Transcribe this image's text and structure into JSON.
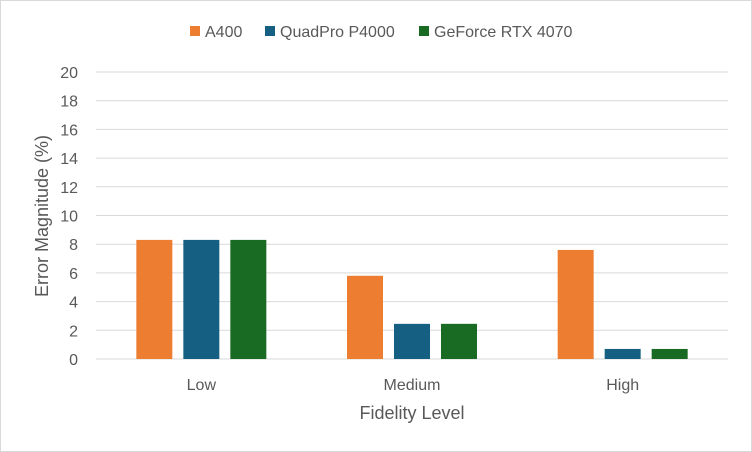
{
  "chart_data": {
    "type": "bar",
    "categories": [
      "Low",
      "Medium",
      "High"
    ],
    "series": [
      {
        "name": "A400",
        "color": "#ED7D31",
        "values": [
          8.3,
          5.8,
          7.6
        ]
      },
      {
        "name": "QuadPro P4000",
        "color": "#156082",
        "values": [
          8.3,
          2.45,
          0.7
        ]
      },
      {
        "name": "GeForce RTX 4070",
        "color": "#196B24",
        "values": [
          8.3,
          2.45,
          0.7
        ]
      }
    ],
    "title": "",
    "xlabel": "Fidelity Level",
    "ylabel": "Error Magnitude (%)",
    "ylim": [
      0,
      20
    ],
    "yticks": [
      0,
      2,
      4,
      6,
      8,
      10,
      12,
      14,
      16,
      18,
      20
    ],
    "grid": true,
    "legend_position": "top"
  }
}
